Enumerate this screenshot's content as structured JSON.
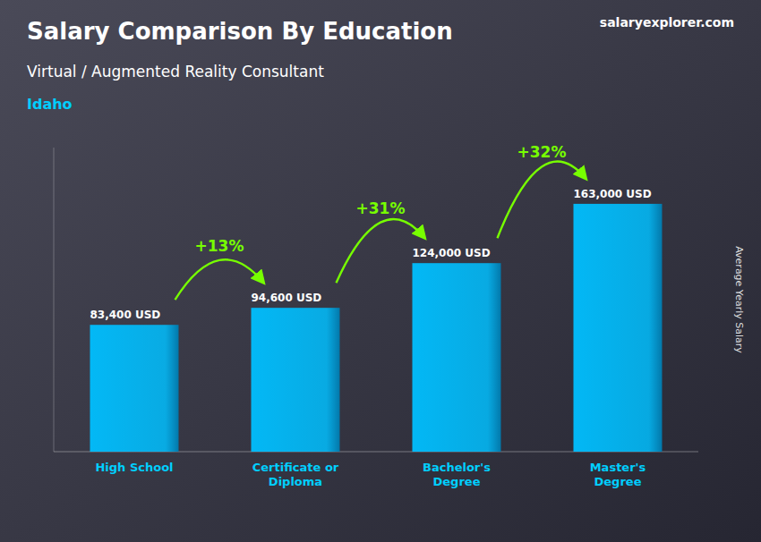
{
  "chart_data": {
    "type": "bar",
    "title": "Salary Comparison By Education",
    "subtitle": "Virtual / Augmented Reality Consultant",
    "ylabel": "Average Yearly Salary",
    "categories": [
      "High School",
      "Certificate or\nDiploma",
      "Bachelor's\nDegree",
      "Master's\nDegree"
    ],
    "values": [
      83400,
      94600,
      124000,
      163000
    ],
    "value_labels": [
      "83,400 USD",
      "94,600 USD",
      "124,000 USD",
      "163,000 USD"
    ],
    "annotations": [
      "+13%",
      "+31%",
      "+32%",
      "Idaho",
      "salaryexplorer.com"
    ],
    "color": "#00BFFF",
    "ylim": [
      0,
      200000
    ],
    "data_labels": true,
    "tick_labels": "x",
    "grid": false
  }
}
